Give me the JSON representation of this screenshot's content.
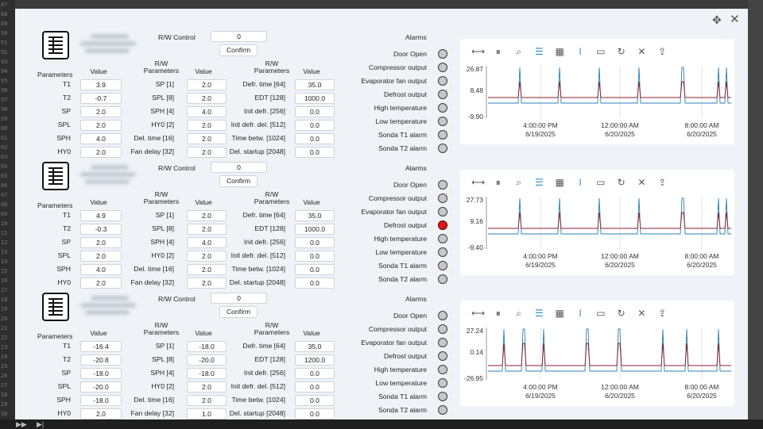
{
  "gutter_numbers": [
    "87",
    "88",
    "89",
    "90",
    "91",
    "92",
    "93",
    "94",
    "95",
    "96",
    "97",
    "98",
    "99",
    "00",
    "01",
    "02",
    "03",
    "04",
    "05",
    "06",
    "07",
    "08",
    "09",
    "10",
    "11",
    "12",
    "13",
    "14",
    "15",
    "16",
    "17",
    "18",
    "19",
    "20",
    "21",
    "22",
    "23",
    "24",
    "25",
    "26",
    "27",
    "28",
    "29",
    "30",
    "31"
  ],
  "modal": {
    "move_icon": "move-arrows-icon",
    "close_icon": "close-icon"
  },
  "labels": {
    "rw_control": "R/W Control",
    "confirm": "Confirm",
    "parameters": "Parameters",
    "value": "Value",
    "rw": "R/W",
    "rw_parameters": "Parameters",
    "alarms": "Alarms"
  },
  "param_names": [
    "T1",
    "T2",
    "SP",
    "SPL",
    "SPH",
    "HY0"
  ],
  "rw_params_mid": [
    "SP [1]",
    "SPL [8]",
    "SPH [4]",
    "HY0 [2]",
    "Del. time [16]",
    "Fan delay [32]"
  ],
  "rw_params_right": [
    "Defr. time [64]",
    "EDT [128]",
    "Init defr. [256]",
    "Init defr. del. [512]",
    "Time betw. [1024]",
    "Del. startup [2048]"
  ],
  "alarm_names": [
    "Door Open",
    "Compressor output",
    "Evaporator fan output",
    "Defrost output",
    "High temperature",
    "Low temperature",
    "Sonda T1 alarm",
    "Sonda T2 alarm"
  ],
  "toolbar_icons": [
    "fit-width-icon",
    "pause-icon",
    "zoom-icon",
    "list-icon",
    "calendar-icon",
    "cursor-icon",
    "comment-icon",
    "refresh-icon",
    "close-icon",
    "export-icon"
  ],
  "units": [
    {
      "rw_control_value": "0",
      "params": [
        "3.9",
        "-0.7",
        "2.0",
        "2.0",
        "4.0",
        "2.0"
      ],
      "mid_values": [
        "2.0",
        "2.0",
        "4.0",
        "2.0",
        "2.0",
        "2.0"
      ],
      "right_values": [
        "35.0",
        "1000.0",
        "0.0",
        "0.0",
        "0.0",
        "0.0"
      ],
      "alarms_on": [
        false,
        false,
        false,
        false,
        false,
        false,
        false,
        false
      ],
      "chart": {
        "y_labels": [
          "26.87",
          "8.48",
          "-9.90"
        ],
        "x_labels": [
          [
            "4:00:00 PM",
            "6/19/2025"
          ],
          [
            "12:00:00 AM",
            "6/20/2025"
          ],
          [
            "8:00:00 AM",
            "6/20/2025"
          ]
        ]
      }
    },
    {
      "rw_control_value": "0",
      "params": [
        "4.9",
        "-0.3",
        "2.0",
        "2.0",
        "4.0",
        "2.0"
      ],
      "mid_values": [
        "2.0",
        "2.0",
        "4.0",
        "2.0",
        "2.0",
        "2.0"
      ],
      "right_values": [
        "35.0",
        "1000.0",
        "0.0",
        "0.0",
        "0.0",
        "0.0"
      ],
      "alarms_on": [
        false,
        false,
        false,
        true,
        false,
        false,
        false,
        false
      ],
      "chart": {
        "y_labels": [
          "27.73",
          "9.16",
          "-9.40"
        ],
        "x_labels": [
          [
            "4:00:00 PM",
            "6/19/2025"
          ],
          [
            "12:00:00 AM",
            "6/20/2025"
          ],
          [
            "8:00:00 AM",
            "6/20/2025"
          ]
        ]
      }
    },
    {
      "rw_control_value": "0",
      "params": [
        "-16.4",
        "-20.8",
        "-18.0",
        "-20.0",
        "-18.0",
        "2.0"
      ],
      "mid_values": [
        "-18.0",
        "-20.0",
        "-18.0",
        "2.0",
        "2.0",
        "1.0"
      ],
      "right_values": [
        "35.0",
        "1200.0",
        "0.0",
        "0.0",
        "0.0",
        "0.0"
      ],
      "alarms_on": [
        false,
        false,
        false,
        false,
        false,
        false,
        false,
        false
      ],
      "chart": {
        "y_labels": [
          "27.24",
          "0.14",
          "-26.95"
        ],
        "x_labels": [
          [
            "4:00:00 PM",
            "6/19/2025"
          ],
          [
            "12:00:00 AM",
            "6/20/2025"
          ],
          [
            "8:00:00 AM",
            "6/20/2025"
          ]
        ]
      }
    }
  ],
  "colors": {
    "series_red": "#8b1e2b",
    "series_blue": "#2e7fb8",
    "led_on": "#e0141a",
    "led_off": "#c8c8c8"
  }
}
